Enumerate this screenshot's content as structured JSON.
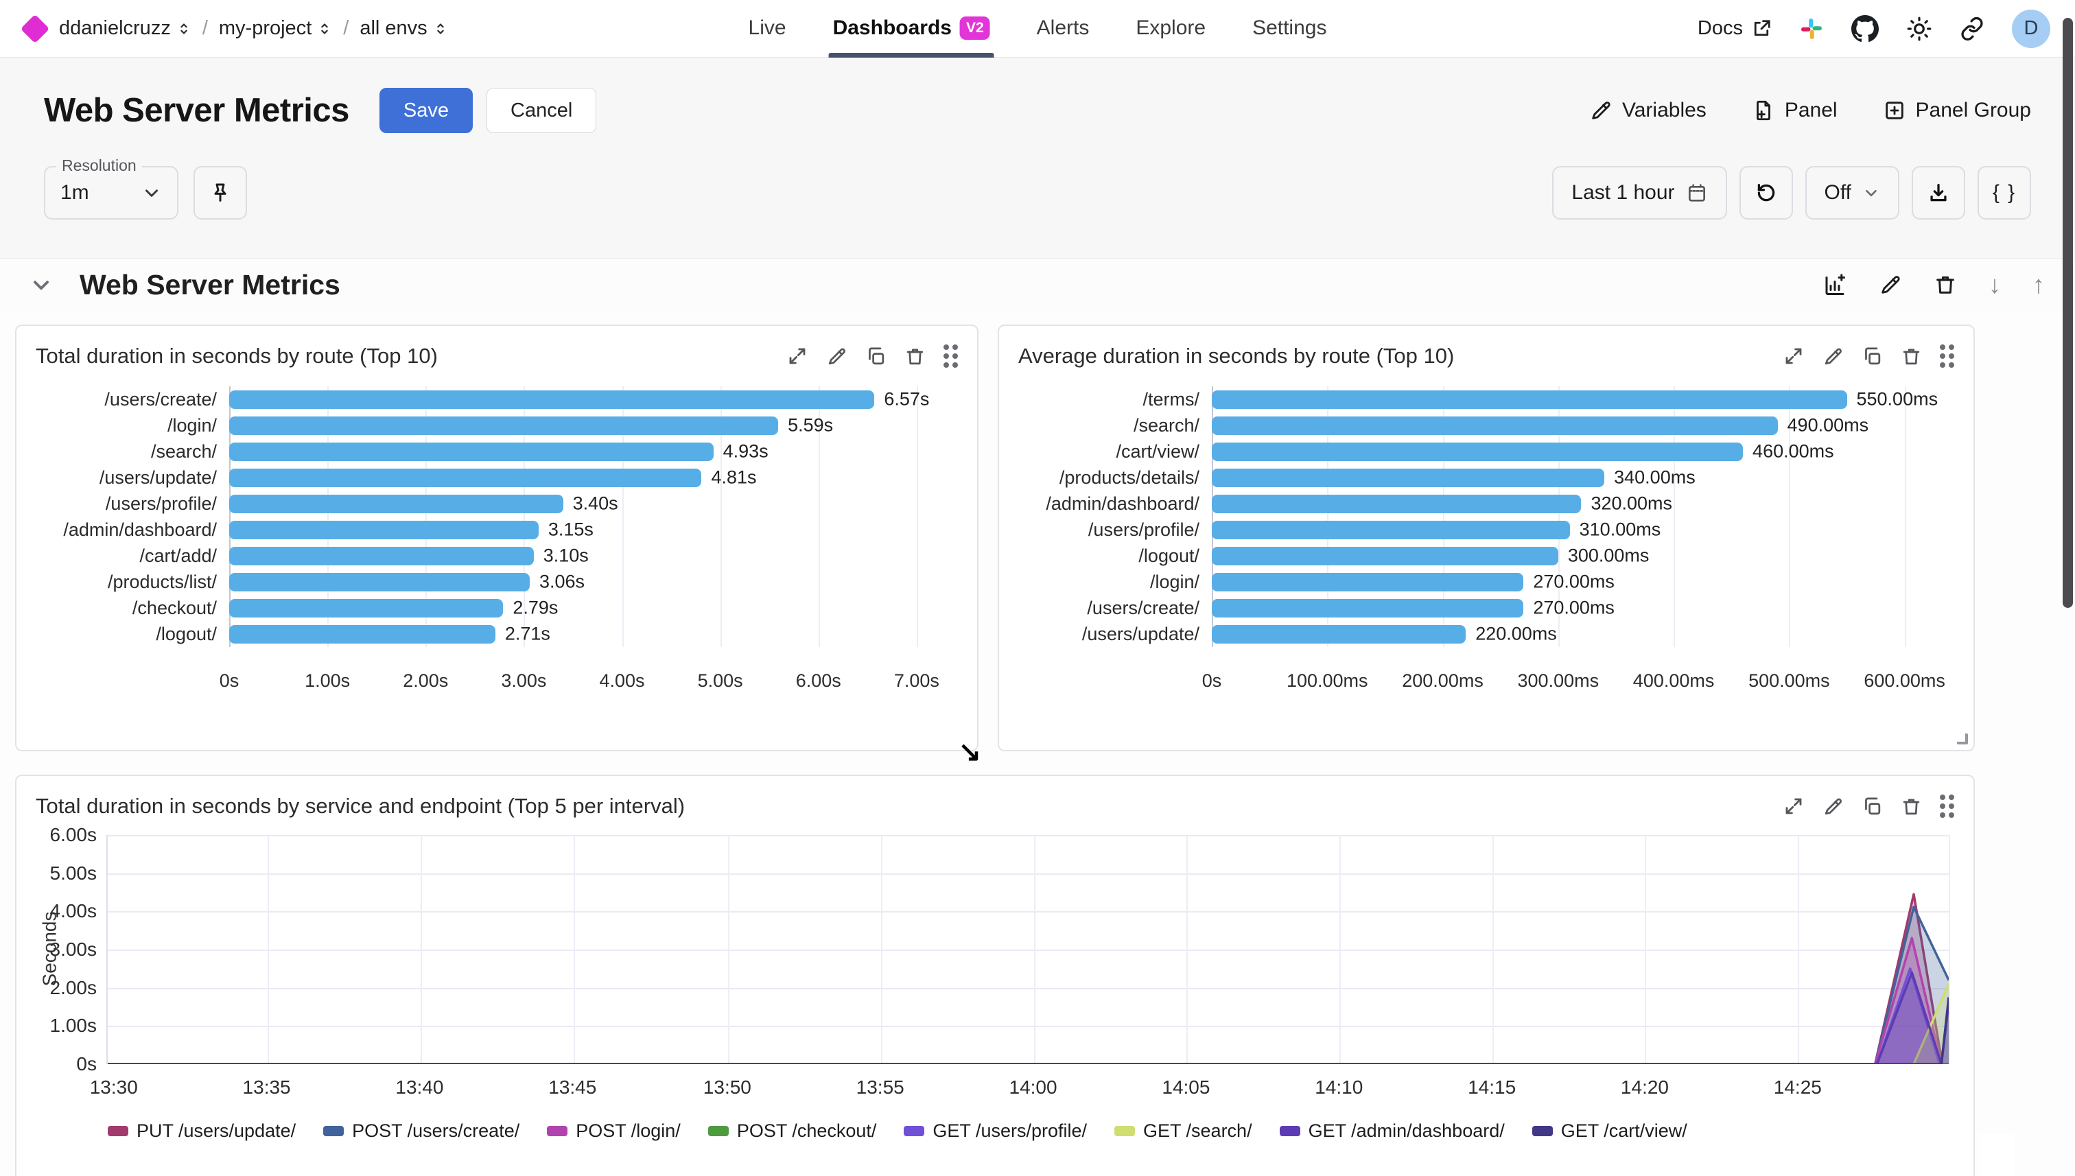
{
  "nav": {
    "breadcrumb": [
      {
        "label": "ddanielcruzz"
      },
      {
        "label": "my-project"
      },
      {
        "label": "all envs"
      }
    ],
    "tabs": [
      {
        "label": "Live"
      },
      {
        "label": "Dashboards",
        "badge": "V2",
        "active": true
      },
      {
        "label": "Alerts"
      },
      {
        "label": "Explore"
      },
      {
        "label": "Settings"
      }
    ],
    "docs_label": "Docs",
    "avatar_initial": "D"
  },
  "toolbar": {
    "page_title": "Web Server Metrics",
    "save_label": "Save",
    "cancel_label": "Cancel",
    "variables_label": "Variables",
    "panel_label": "Panel",
    "panel_group_label": "Panel Group"
  },
  "controls": {
    "resolution_label": "Resolution",
    "resolution_value": "1m",
    "time_range_label": "Last 1 hour",
    "refresh_off_label": "Off",
    "braces_label": "{ }"
  },
  "section": {
    "title": "Web Server Metrics"
  },
  "colors": {
    "accent_magenta": "#e235d8",
    "primary_blue": "#3e70d8",
    "bar_blue": "#57aee6"
  },
  "chart_data": [
    {
      "type": "bar",
      "orientation": "horizontal",
      "title": "Total duration in seconds by route (Top 10)",
      "categories": [
        "/users/create/",
        "/login/",
        "/search/",
        "/users/update/",
        "/users/profile/",
        "/admin/dashboard/",
        "/cart/add/",
        "/products/list/",
        "/checkout/",
        "/logout/"
      ],
      "values": [
        6.57,
        5.59,
        4.93,
        4.81,
        3.4,
        3.15,
        3.1,
        3.06,
        2.79,
        2.71
      ],
      "value_labels": [
        "6.57s",
        "5.59s",
        "4.93s",
        "4.81s",
        "3.40s",
        "3.15s",
        "3.10s",
        "3.06s",
        "2.79s",
        "2.71s"
      ],
      "x_ticks": [
        {
          "v": 0,
          "label": "0s"
        },
        {
          "v": 1,
          "label": "1.00s"
        },
        {
          "v": 2,
          "label": "2.00s"
        },
        {
          "v": 3,
          "label": "3.00s"
        },
        {
          "v": 4,
          "label": "4.00s"
        },
        {
          "v": 5,
          "label": "5.00s"
        },
        {
          "v": 6,
          "label": "6.00s"
        },
        {
          "v": 7,
          "label": "7.00s"
        }
      ],
      "xmax": 7.42
    },
    {
      "type": "bar",
      "orientation": "horizontal",
      "title": "Average duration in seconds by route (Top 10)",
      "categories": [
        "/terms/",
        "/search/",
        "/cart/view/",
        "/products/details/",
        "/admin/dashboard/",
        "/users/profile/",
        "/logout/",
        "/login/",
        "/users/create/",
        "/users/update/"
      ],
      "values": [
        550,
        490,
        460,
        340,
        320,
        310,
        300,
        270,
        270,
        220
      ],
      "value_labels": [
        "550.00ms",
        "490.00ms",
        "460.00ms",
        "340.00ms",
        "320.00ms",
        "310.00ms",
        "300.00ms",
        "270.00ms",
        "270.00ms",
        "220.00ms"
      ],
      "x_ticks": [
        {
          "v": 0,
          "label": "0s"
        },
        {
          "v": 100,
          "label": "100.00ms"
        },
        {
          "v": 200,
          "label": "200.00ms"
        },
        {
          "v": 300,
          "label": "300.00ms"
        },
        {
          "v": 400,
          "label": "400.00ms"
        },
        {
          "v": 500,
          "label": "500.00ms"
        },
        {
          "v": 600,
          "label": "600.00ms"
        }
      ],
      "xmax": 643
    },
    {
      "type": "area",
      "title": "Total duration in seconds by service and endpoint (Top 5 per interval)",
      "ylabel": "Seconds",
      "ylim": [
        0,
        6
      ],
      "y_ticks": [
        {
          "v": 6,
          "label": "6.00s"
        },
        {
          "v": 5,
          "label": "5.00s"
        },
        {
          "v": 4,
          "label": "4.00s"
        },
        {
          "v": 3,
          "label": "3.00s"
        },
        {
          "v": 2,
          "label": "2.00s"
        },
        {
          "v": 1,
          "label": "1.00s"
        },
        {
          "v": 0,
          "label": "0s"
        }
      ],
      "x_ticks": [
        {
          "f": 0.004,
          "label": "13:30"
        },
        {
          "f": 0.087,
          "label": "13:35"
        },
        {
          "f": 0.17,
          "label": "13:40"
        },
        {
          "f": 0.253,
          "label": "13:45"
        },
        {
          "f": 0.337,
          "label": "13:50"
        },
        {
          "f": 0.42,
          "label": "13:55"
        },
        {
          "f": 0.503,
          "label": "14:00"
        },
        {
          "f": 0.586,
          "label": "14:05"
        },
        {
          "f": 0.669,
          "label": "14:10"
        },
        {
          "f": 0.752,
          "label": "14:15"
        },
        {
          "f": 0.835,
          "label": "14:20"
        },
        {
          "f": 0.918,
          "label": "14:25"
        }
      ],
      "series": [
        {
          "name": "PUT /users/update/",
          "color": "#a23a6d",
          "points": [
            [
              0,
              0
            ],
            [
              0.96,
              0
            ],
            [
              0.981,
              4.45
            ],
            [
              0.9965,
              0
            ],
            [
              1,
              0
            ]
          ]
        },
        {
          "name": "POST /users/create/",
          "color": "#41639b",
          "points": [
            [
              0,
              0
            ],
            [
              0.96,
              0
            ],
            [
              0.981,
              4.12
            ],
            [
              1,
              2.2
            ]
          ]
        },
        {
          "name": "POST /login/",
          "color": "#b143ae",
          "points": [
            [
              0,
              0
            ],
            [
              0.96,
              0
            ],
            [
              0.98,
              3.3
            ],
            [
              0.996,
              0
            ],
            [
              1,
              0
            ]
          ]
        },
        {
          "name": "POST /checkout/",
          "color": "#4e9a3f",
          "points": [
            [
              0,
              0
            ],
            [
              1,
              0
            ]
          ]
        },
        {
          "name": "GET /users/profile/",
          "color": "#7150d8",
          "points": [
            [
              0,
              0
            ],
            [
              0.961,
              0
            ],
            [
              0.979,
              2.5
            ],
            [
              0.995,
              0
            ],
            [
              1,
              0
            ]
          ]
        },
        {
          "name": "GET /search/",
          "color": "#d0dd70",
          "points": [
            [
              0,
              0
            ],
            [
              0.981,
              0
            ],
            [
              1,
              2.1
            ]
          ]
        },
        {
          "name": "GET /admin/dashboard/",
          "color": "#5b3cb3",
          "points": [
            [
              0,
              0
            ],
            [
              0.961,
              0
            ],
            [
              0.98,
              2.4
            ],
            [
              0.996,
              0
            ],
            [
              1,
              1.6
            ]
          ]
        },
        {
          "name": "GET /cart/view/",
          "color": "#403787",
          "points": [
            [
              0,
              0
            ],
            [
              0.996,
              0
            ],
            [
              1,
              1.75
            ]
          ]
        }
      ]
    }
  ]
}
